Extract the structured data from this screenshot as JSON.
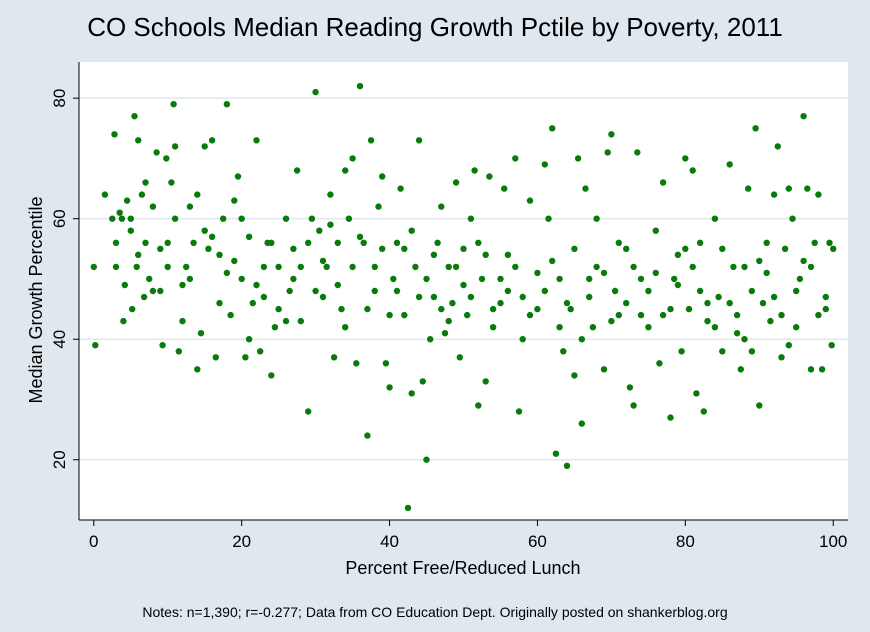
{
  "chart_data": {
    "type": "scatter",
    "title": "CO Schools Median Reading Growth Pctile by Poverty, 2011",
    "xlabel": "Percent Free/Reduced Lunch",
    "ylabel": "Median Growth Percentile",
    "xlim": [
      -2,
      102
    ],
    "ylim": [
      10,
      86
    ],
    "x_ticks": [
      0,
      20,
      40,
      60,
      80,
      100
    ],
    "y_ticks": [
      20,
      40,
      60,
      80
    ],
    "grid": "horizontal",
    "marker_color": "#0a7a0a",
    "points": [
      [
        0,
        52
      ],
      [
        0.2,
        39
      ],
      [
        1.5,
        64
      ],
      [
        2.5,
        60
      ],
      [
        2.8,
        74
      ],
      [
        3,
        52
      ],
      [
        3.5,
        61
      ],
      [
        3.8,
        60
      ],
      [
        4,
        43
      ],
      [
        4.5,
        63
      ],
      [
        5,
        60
      ],
      [
        5.2,
        45
      ],
      [
        5.5,
        77
      ],
      [
        5.8,
        52
      ],
      [
        6,
        73
      ],
      [
        6.5,
        64
      ],
      [
        7,
        56
      ],
      [
        7.5,
        50
      ],
      [
        8,
        48
      ],
      [
        8.5,
        71
      ],
      [
        9,
        55
      ],
      [
        9.3,
        39
      ],
      [
        9.8,
        70
      ],
      [
        10,
        52
      ],
      [
        10.5,
        66
      ],
      [
        10.8,
        79
      ],
      [
        11,
        72
      ],
      [
        11.5,
        38
      ],
      [
        12,
        43
      ],
      [
        12.5,
        52
      ],
      [
        13,
        62
      ],
      [
        13.5,
        56
      ],
      [
        14,
        35
      ],
      [
        14.5,
        41
      ],
      [
        15,
        72
      ],
      [
        15.5,
        55
      ],
      [
        16,
        73
      ],
      [
        16.5,
        37
      ],
      [
        17,
        46
      ],
      [
        17.5,
        60
      ],
      [
        18,
        79
      ],
      [
        18.5,
        44
      ],
      [
        19,
        53
      ],
      [
        19.5,
        67
      ],
      [
        20,
        50
      ],
      [
        20.5,
        37
      ],
      [
        21,
        40
      ],
      [
        21.5,
        46
      ],
      [
        22,
        73
      ],
      [
        22.5,
        38
      ],
      [
        23,
        47
      ],
      [
        23.5,
        56
      ],
      [
        24,
        34
      ],
      [
        24.5,
        42
      ],
      [
        25,
        52
      ],
      [
        26,
        60
      ],
      [
        26.5,
        48
      ],
      [
        27,
        55
      ],
      [
        27.5,
        68
      ],
      [
        28,
        43
      ],
      [
        29,
        28
      ],
      [
        29.5,
        60
      ],
      [
        30,
        81
      ],
      [
        30.5,
        58
      ],
      [
        31,
        47
      ],
      [
        31.5,
        52
      ],
      [
        32,
        64
      ],
      [
        32.5,
        37
      ],
      [
        33,
        56
      ],
      [
        33.5,
        45
      ],
      [
        34,
        68
      ],
      [
        34.5,
        60
      ],
      [
        35,
        70
      ],
      [
        35.5,
        36
      ],
      [
        36,
        82
      ],
      [
        36.5,
        56
      ],
      [
        37,
        24
      ],
      [
        37.5,
        73
      ],
      [
        38,
        48
      ],
      [
        38.5,
        62
      ],
      [
        39,
        67
      ],
      [
        39.5,
        36
      ],
      [
        40,
        32
      ],
      [
        40.5,
        50
      ],
      [
        41,
        56
      ],
      [
        41.5,
        65
      ],
      [
        42,
        44
      ],
      [
        42.5,
        12
      ],
      [
        43,
        31
      ],
      [
        43.5,
        52
      ],
      [
        44,
        73
      ],
      [
        44.5,
        33
      ],
      [
        45,
        20
      ],
      [
        45.5,
        40
      ],
      [
        46,
        47
      ],
      [
        46.5,
        56
      ],
      [
        47,
        62
      ],
      [
        47.5,
        41
      ],
      [
        48,
        52
      ],
      [
        48.5,
        46
      ],
      [
        49,
        66
      ],
      [
        49.5,
        37
      ],
      [
        50,
        55
      ],
      [
        50.5,
        44
      ],
      [
        51,
        60
      ],
      [
        51.5,
        68
      ],
      [
        52,
        29
      ],
      [
        52.5,
        50
      ],
      [
        53,
        33
      ],
      [
        53.5,
        67
      ],
      [
        54,
        45
      ],
      [
        55,
        50
      ],
      [
        55.5,
        65
      ],
      [
        56,
        54
      ],
      [
        57,
        70
      ],
      [
        57.5,
        28
      ],
      [
        58,
        47
      ],
      [
        59,
        63
      ],
      [
        60,
        51
      ],
      [
        61,
        69
      ],
      [
        61.5,
        60
      ],
      [
        62,
        75
      ],
      [
        62.5,
        21
      ],
      [
        63,
        50
      ],
      [
        63.5,
        38
      ],
      [
        64,
        19
      ],
      [
        64.5,
        45
      ],
      [
        65,
        34
      ],
      [
        65.5,
        70
      ],
      [
        66,
        26
      ],
      [
        66.5,
        65
      ],
      [
        67,
        50
      ],
      [
        67.5,
        42
      ],
      [
        68,
        60
      ],
      [
        69,
        35
      ],
      [
        69.5,
        71
      ],
      [
        70,
        74
      ],
      [
        70.5,
        48
      ],
      [
        71,
        56
      ],
      [
        72,
        46
      ],
      [
        72.5,
        32
      ],
      [
        73,
        29
      ],
      [
        73.5,
        71
      ],
      [
        74,
        50
      ],
      [
        75,
        42
      ],
      [
        76,
        58
      ],
      [
        76.5,
        36
      ],
      [
        77,
        66
      ],
      [
        78,
        27
      ],
      [
        78.5,
        50
      ],
      [
        79,
        54
      ],
      [
        79.5,
        38
      ],
      [
        80,
        70
      ],
      [
        80.5,
        45
      ],
      [
        81,
        68
      ],
      [
        81.5,
        31
      ],
      [
        82,
        56
      ],
      [
        82.5,
        28
      ],
      [
        83,
        43
      ],
      [
        84,
        60
      ],
      [
        84.5,
        47
      ],
      [
        85,
        38
      ],
      [
        86,
        69
      ],
      [
        86.5,
        52
      ],
      [
        87,
        44
      ],
      [
        87.5,
        35
      ],
      [
        88,
        52
      ],
      [
        88.5,
        65
      ],
      [
        89,
        38
      ],
      [
        89.5,
        75
      ],
      [
        90,
        29
      ],
      [
        90.5,
        46
      ],
      [
        91,
        56
      ],
      [
        91.5,
        43
      ],
      [
        92,
        64
      ],
      [
        92.5,
        72
      ],
      [
        93,
        37
      ],
      [
        93.5,
        55
      ],
      [
        94,
        65
      ],
      [
        94.5,
        60
      ],
      [
        95,
        42
      ],
      [
        95.5,
        50
      ],
      [
        96,
        77
      ],
      [
        96.5,
        65
      ],
      [
        97,
        35
      ],
      [
        97.5,
        56
      ],
      [
        98,
        64
      ],
      [
        98.5,
        35
      ],
      [
        99,
        45
      ],
      [
        99.5,
        56
      ],
      [
        99.8,
        39
      ],
      [
        100,
        55
      ],
      [
        5,
        58
      ],
      [
        7,
        66
      ],
      [
        9,
        48
      ],
      [
        11,
        60
      ],
      [
        13,
        50
      ],
      [
        15,
        58
      ],
      [
        17,
        54
      ],
      [
        19,
        63
      ],
      [
        21,
        57
      ],
      [
        23,
        52
      ],
      [
        25,
        45
      ],
      [
        27,
        50
      ],
      [
        29,
        56
      ],
      [
        31,
        53
      ],
      [
        33,
        49
      ],
      [
        35,
        52
      ],
      [
        37,
        45
      ],
      [
        39,
        55
      ],
      [
        41,
        48
      ],
      [
        43,
        58
      ],
      [
        45,
        50
      ],
      [
        47,
        45
      ],
      [
        49,
        52
      ],
      [
        51,
        47
      ],
      [
        53,
        54
      ],
      [
        55,
        46
      ],
      [
        57,
        52
      ],
      [
        59,
        44
      ],
      [
        61,
        48
      ],
      [
        63,
        42
      ],
      [
        65,
        55
      ],
      [
        67,
        47
      ],
      [
        69,
        51
      ],
      [
        71,
        44
      ],
      [
        73,
        52
      ],
      [
        75,
        48
      ],
      [
        77,
        44
      ],
      [
        79,
        49
      ],
      [
        81,
        52
      ],
      [
        83,
        46
      ],
      [
        85,
        55
      ],
      [
        87,
        41
      ],
      [
        89,
        48
      ],
      [
        91,
        51
      ],
      [
        93,
        44
      ],
      [
        95,
        48
      ],
      [
        97,
        52
      ],
      [
        99,
        47
      ],
      [
        6,
        54
      ],
      [
        8,
        62
      ],
      [
        10,
        56
      ],
      [
        12,
        49
      ],
      [
        14,
        64
      ],
      [
        16,
        57
      ],
      [
        18,
        51
      ],
      [
        20,
        60
      ],
      [
        22,
        49
      ],
      [
        24,
        56
      ],
      [
        26,
        43
      ],
      [
        28,
        52
      ],
      [
        30,
        48
      ],
      [
        32,
        59
      ],
      [
        34,
        42
      ],
      [
        36,
        57
      ],
      [
        38,
        52
      ],
      [
        40,
        44
      ],
      [
        42,
        55
      ],
      [
        44,
        47
      ],
      [
        46,
        54
      ],
      [
        48,
        43
      ],
      [
        50,
        49
      ],
      [
        52,
        56
      ],
      [
        54,
        42
      ],
      [
        56,
        48
      ],
      [
        58,
        40
      ],
      [
        60,
        45
      ],
      [
        62,
        53
      ],
      [
        64,
        46
      ],
      [
        66,
        40
      ],
      [
        68,
        52
      ],
      [
        70,
        43
      ],
      [
        72,
        55
      ],
      [
        74,
        44
      ],
      [
        76,
        51
      ],
      [
        78,
        45
      ],
      [
        80,
        55
      ],
      [
        82,
        48
      ],
      [
        84,
        42
      ],
      [
        86,
        46
      ],
      [
        88,
        40
      ],
      [
        90,
        53
      ],
      [
        92,
        47
      ],
      [
        94,
        39
      ],
      [
        96,
        53
      ],
      [
        98,
        44
      ],
      [
        3,
        56
      ],
      [
        4.2,
        49
      ],
      [
        6.8,
        47
      ]
    ]
  },
  "footer": {
    "note": "Notes: n=1,390; r=-0.277; Data from CO Education Dept. Originally posted on shankerblog.org"
  },
  "colors": {
    "background": "#dfe8ee",
    "plot_background": "#ffffff",
    "gridline": "#dfe8ee",
    "marker": "#0a7a0a"
  }
}
